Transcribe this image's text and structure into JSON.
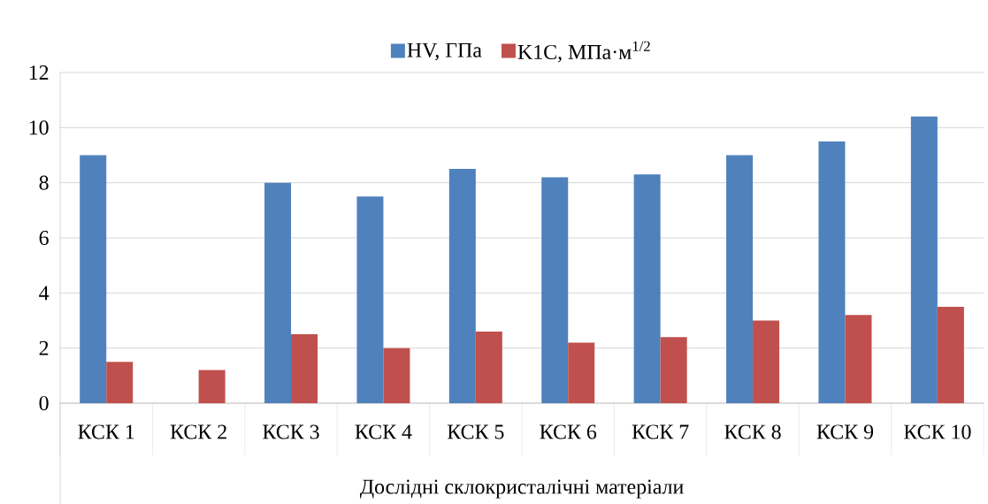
{
  "chart_data": {
    "type": "bar",
    "xlabel": "Дослідні склокристалічні матеріали",
    "categories": [
      "КСК 1",
      "КСК 2",
      "КСК 3",
      "КСК 4",
      "КСК 5",
      "КСК 6",
      "КСК 7",
      "КСК 8",
      "КСК 9",
      "КСК 10"
    ],
    "series": [
      {
        "name": "HV, ГПа",
        "color": "#4f81bd",
        "values": [
          9,
          null,
          8,
          7.5,
          8.5,
          8.2,
          8.3,
          9,
          9.5,
          10.4
        ]
      },
      {
        "name": "K1C, МПа·м$^{1/2}$",
        "color": "#c0504d",
        "values": [
          1.5,
          1.2,
          2.5,
          2,
          2.6,
          2.2,
          2.4,
          3,
          3.2,
          3.5
        ]
      }
    ],
    "ylim": [
      0,
      12
    ],
    "yticks": [
      0,
      2,
      4,
      6,
      8,
      10,
      12
    ],
    "grid": "y",
    "legend": "top"
  }
}
